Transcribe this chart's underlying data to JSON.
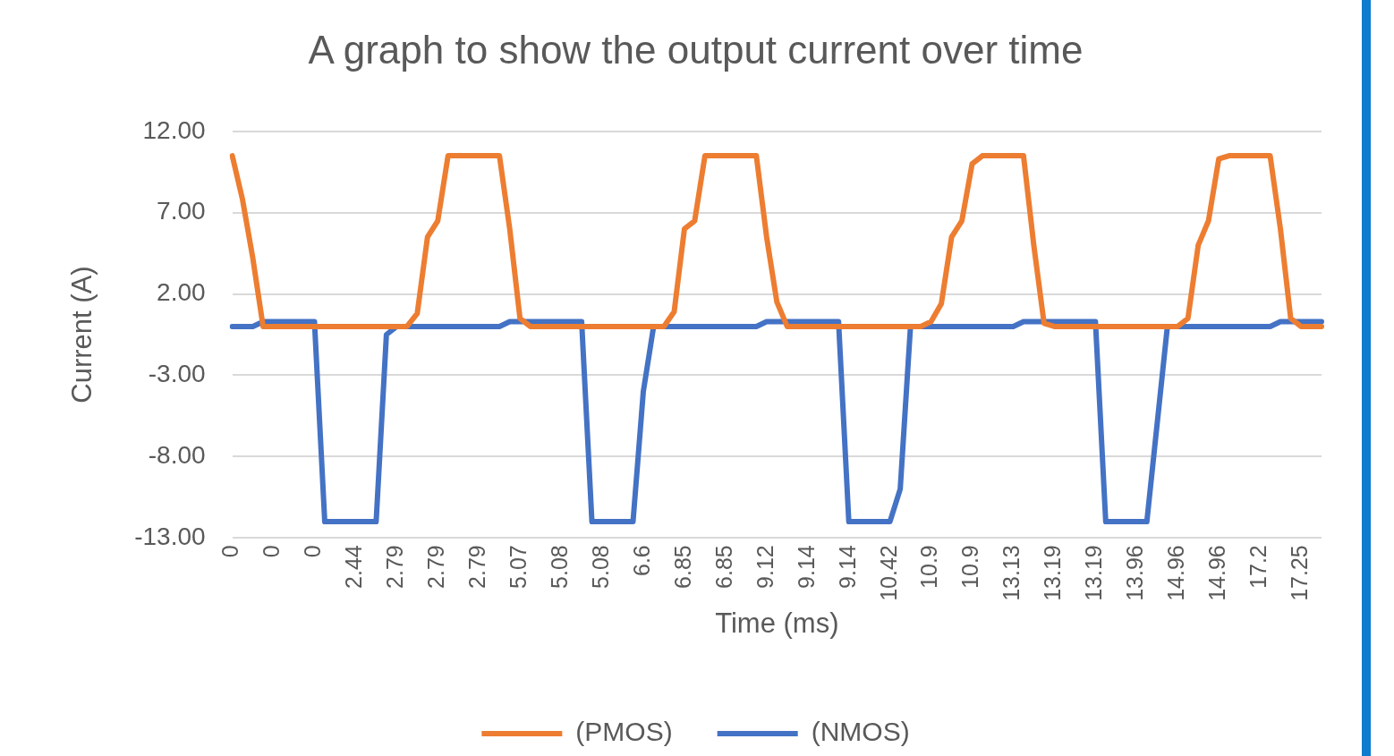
{
  "chart_data": {
    "type": "line",
    "title": "A graph to show the output current over time",
    "xlabel": "Time (ms)",
    "ylabel": "Current (A)",
    "categories": [
      "0",
      null,
      null,
      null,
      "0",
      null,
      null,
      null,
      "0",
      null,
      null,
      null,
      "2.44",
      null,
      null,
      null,
      "2.79",
      null,
      null,
      null,
      "2.79",
      null,
      null,
      null,
      "2.79",
      null,
      null,
      null,
      "5.07",
      null,
      null,
      null,
      "5.08",
      null,
      null,
      null,
      "5.08",
      null,
      null,
      null,
      "6.6",
      null,
      null,
      null,
      "6.85",
      null,
      null,
      null,
      "6.85",
      null,
      null,
      null,
      "9.12",
      null,
      null,
      null,
      "9.14",
      null,
      null,
      null,
      "9.14",
      null,
      null,
      null,
      "10.42",
      null,
      null,
      null,
      "10.9",
      null,
      null,
      null,
      "10.9",
      null,
      null,
      null,
      "13.13",
      null,
      null,
      null,
      "13.19",
      null,
      null,
      null,
      "13.19",
      null,
      null,
      null,
      "13.96",
      null,
      null,
      null,
      "14.96",
      null,
      null,
      null,
      "14.96",
      null,
      null,
      null,
      "17.2",
      null,
      null,
      null,
      "17.25",
      null,
      null
    ],
    "series": [
      {
        "name": "(PMOS)",
        "color": "#ed7d31",
        "values": [
          10.5,
          7.8,
          4.2,
          0,
          0,
          0,
          0,
          0,
          0,
          0,
          0,
          0,
          0,
          0,
          0,
          0,
          0,
          0,
          0.8,
          5.5,
          6.5,
          10.5,
          10.5,
          10.5,
          10.5,
          10.5,
          10.5,
          6,
          0.5,
          0,
          0,
          0,
          0,
          0,
          0,
          0,
          0,
          0,
          0,
          0,
          0,
          0,
          0,
          0.9,
          6,
          6.5,
          10.5,
          10.5,
          10.5,
          10.5,
          10.5,
          10.5,
          5.5,
          1.5,
          0,
          0,
          0,
          0,
          0,
          0,
          0,
          0,
          0,
          0,
          0,
          0,
          0,
          0,
          0.3,
          1.4,
          5.5,
          6.5,
          10,
          10.5,
          10.5,
          10.5,
          10.5,
          10.5,
          5,
          0.2,
          0,
          0,
          0,
          0,
          0,
          0,
          0,
          0,
          0,
          0,
          0,
          0,
          0,
          0.5,
          5,
          6.5,
          10.3,
          10.5,
          10.5,
          10.5,
          10.5,
          10.5,
          6,
          0.5,
          0,
          0,
          0
        ]
      },
      {
        "name": "(NMOS)",
        "color": "#4472c4",
        "values": [
          0,
          0,
          0,
          0.3,
          0.3,
          0.3,
          0.3,
          0.3,
          0.3,
          -12,
          -12,
          -12,
          -12,
          -12,
          -12,
          -0.5,
          0,
          0,
          0,
          0,
          0,
          0,
          0,
          0,
          0,
          0,
          0,
          0.3,
          0.3,
          0.3,
          0.3,
          0.3,
          0.3,
          0.3,
          0.3,
          -12,
          -12,
          -12,
          -12,
          -12,
          -4,
          0,
          0,
          0,
          0,
          0,
          0,
          0,
          0,
          0,
          0,
          0,
          0.3,
          0.3,
          0.3,
          0.3,
          0.3,
          0.3,
          0.3,
          0.3,
          -12,
          -12,
          -12,
          -12,
          -12,
          -10,
          0,
          0,
          0,
          0,
          0,
          0,
          0,
          0,
          0,
          0,
          0,
          0.3,
          0.3,
          0.3,
          0.3,
          0.3,
          0.3,
          0.3,
          0.3,
          -12,
          -12,
          -12,
          -12,
          -12,
          -6,
          0,
          0,
          0,
          0,
          0,
          0,
          0,
          0,
          0,
          0,
          0,
          0.3,
          0.3,
          0.3,
          0.3,
          0.3
        ]
      }
    ],
    "ylim": [
      -13,
      12
    ],
    "yticks": [
      {
        "value": -13,
        "label": "-13.00"
      },
      {
        "value": -8,
        "label": "-8.00"
      },
      {
        "value": -3,
        "label": "-3.00"
      },
      {
        "value": 2,
        "label": "2.00"
      },
      {
        "value": 7,
        "label": "7.00"
      },
      {
        "value": 12,
        "label": "12.00"
      }
    ],
    "grid": "y",
    "legend": "bottom",
    "marker": "none",
    "line_style": "solid"
  }
}
